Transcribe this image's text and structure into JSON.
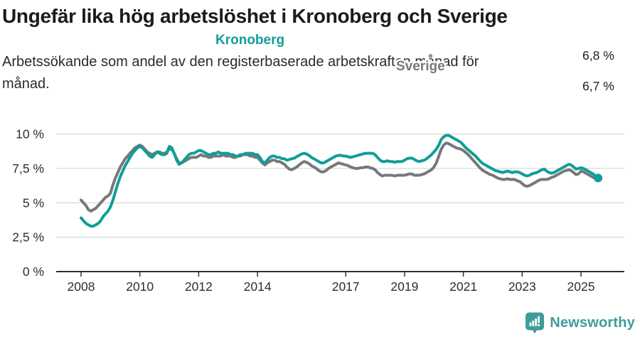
{
  "header": {
    "title": "Ungefär lika hög arbetslöshet i Kronoberg och Sverige",
    "subtitle_line1": "Arbetssökande som andel av den registerbaserade arbetskraften månad för",
    "subtitle_line2": "månad."
  },
  "chart_data": {
    "type": "line",
    "title": "Ungefär lika hög arbetslöshet i Kronoberg och Sverige",
    "subtitle": "Arbetssökande som andel av den registerbaserade arbetskraften månad för månad.",
    "unit": "%",
    "x_start": "2008-01",
    "x_end": "2025-08",
    "ylim": [
      0,
      10
    ],
    "grid": "horizontal",
    "legend_position": "inline-labels",
    "y_ticks": {
      "values": [
        0,
        2.5,
        5,
        7.5,
        10
      ],
      "labels": [
        "0 %",
        "2,5 %",
        "5 %",
        "7,5 %",
        "10 %"
      ]
    },
    "x_ticks": {
      "years": [
        2008,
        2010,
        2012,
        2014,
        2017,
        2019,
        2021,
        2023,
        2025
      ],
      "labels": [
        "2008",
        "2010",
        "2012",
        "2014",
        "2017",
        "2019",
        "2021",
        "2023",
        "2025"
      ]
    },
    "series": [
      {
        "name": "Kronoberg",
        "color": "#109e97",
        "end_label": "6,8 %",
        "last_value": 6.8,
        "end_dot": true,
        "values": [
          3.9,
          3.7,
          3.5,
          3.4,
          3.3,
          3.3,
          3.4,
          3.5,
          3.7,
          4.0,
          4.2,
          4.4,
          4.7,
          5.2,
          5.8,
          6.4,
          6.9,
          7.3,
          7.7,
          8.0,
          8.3,
          8.6,
          8.8,
          9.0,
          9.1,
          9.0,
          8.8,
          8.6,
          8.4,
          8.3,
          8.5,
          8.7,
          8.6,
          8.5,
          8.5,
          8.6,
          9.1,
          9.0,
          8.6,
          8.1,
          7.8,
          7.9,
          8.1,
          8.3,
          8.5,
          8.6,
          8.6,
          8.7,
          8.8,
          8.8,
          8.7,
          8.6,
          8.5,
          8.5,
          8.6,
          8.6,
          8.7,
          8.6,
          8.6,
          8.6,
          8.6,
          8.5,
          8.5,
          8.4,
          8.4,
          8.5,
          8.5,
          8.6,
          8.6,
          8.6,
          8.6,
          8.5,
          8.5,
          8.3,
          8.0,
          7.9,
          8.1,
          8.3,
          8.4,
          8.4,
          8.3,
          8.3,
          8.2,
          8.2,
          8.1,
          8.15,
          8.2,
          8.25,
          8.35,
          8.45,
          8.55,
          8.6,
          8.55,
          8.45,
          8.3,
          8.2,
          8.1,
          8.0,
          7.9,
          7.9,
          8.0,
          8.1,
          8.2,
          8.3,
          8.4,
          8.45,
          8.45,
          8.4,
          8.4,
          8.35,
          8.3,
          8.35,
          8.4,
          8.45,
          8.5,
          8.55,
          8.6,
          8.6,
          8.6,
          8.6,
          8.5,
          8.3,
          8.1,
          8.0,
          8.0,
          8.05,
          8.0,
          8.0,
          7.95,
          8.0,
          8.0,
          8.0,
          8.1,
          8.2,
          8.25,
          8.25,
          8.15,
          8.05,
          8.0,
          8.05,
          8.1,
          8.2,
          8.35,
          8.5,
          8.7,
          8.9,
          9.2,
          9.6,
          9.8,
          9.9,
          9.9,
          9.8,
          9.7,
          9.6,
          9.5,
          9.4,
          9.2,
          9.0,
          8.85,
          8.7,
          8.55,
          8.4,
          8.2,
          8.0,
          7.85,
          7.75,
          7.65,
          7.55,
          7.45,
          7.35,
          7.3,
          7.25,
          7.2,
          7.25,
          7.3,
          7.25,
          7.2,
          7.25,
          7.25,
          7.2,
          7.1,
          7.0,
          6.95,
          7.0,
          7.1,
          7.15,
          7.2,
          7.3,
          7.4,
          7.45,
          7.3,
          7.2,
          7.15,
          7.2,
          7.3,
          7.4,
          7.5,
          7.6,
          7.7,
          7.8,
          7.75,
          7.6,
          7.45,
          7.5,
          7.55,
          7.5,
          7.4,
          7.3,
          7.2,
          7.1,
          6.95,
          6.8
        ]
      },
      {
        "name": "Sverige",
        "color": "#77787c",
        "end_label": "6,7 %",
        "last_value": 6.7,
        "end_dot": false,
        "values": [
          5.2,
          5.0,
          4.8,
          4.5,
          4.4,
          4.5,
          4.6,
          4.8,
          5.0,
          5.2,
          5.4,
          5.5,
          5.7,
          6.3,
          6.8,
          7.2,
          7.6,
          7.9,
          8.2,
          8.4,
          8.6,
          8.8,
          9.0,
          9.1,
          9.2,
          9.1,
          8.9,
          8.7,
          8.6,
          8.5,
          8.6,
          8.7,
          8.7,
          8.6,
          8.6,
          8.7,
          8.9,
          8.9,
          8.6,
          8.2,
          7.9,
          7.9,
          8.0,
          8.1,
          8.2,
          8.3,
          8.3,
          8.3,
          8.4,
          8.5,
          8.4,
          8.4,
          8.3,
          8.3,
          8.4,
          8.4,
          8.4,
          8.4,
          8.5,
          8.4,
          8.4,
          8.4,
          8.3,
          8.3,
          8.4,
          8.4,
          8.5,
          8.5,
          8.5,
          8.4,
          8.4,
          8.3,
          8.3,
          8.1,
          7.9,
          7.75,
          7.9,
          8.0,
          8.1,
          8.1,
          8.0,
          8.0,
          7.9,
          7.8,
          7.6,
          7.45,
          7.4,
          7.5,
          7.6,
          7.75,
          7.9,
          8.0,
          7.95,
          7.85,
          7.7,
          7.6,
          7.5,
          7.35,
          7.25,
          7.25,
          7.35,
          7.5,
          7.6,
          7.7,
          7.8,
          7.9,
          7.85,
          7.8,
          7.75,
          7.7,
          7.6,
          7.55,
          7.5,
          7.5,
          7.55,
          7.55,
          7.6,
          7.6,
          7.55,
          7.5,
          7.4,
          7.2,
          7.05,
          6.95,
          7.0,
          7.0,
          7.0,
          7.0,
          6.95,
          7.0,
          7.0,
          7.0,
          7.0,
          7.05,
          7.1,
          7.1,
          7.0,
          7.0,
          7.0,
          7.05,
          7.1,
          7.2,
          7.3,
          7.4,
          7.6,
          7.9,
          8.4,
          8.9,
          9.2,
          9.35,
          9.3,
          9.2,
          9.1,
          9.0,
          8.95,
          8.9,
          8.8,
          8.65,
          8.5,
          8.3,
          8.1,
          7.9,
          7.7,
          7.5,
          7.35,
          7.25,
          7.15,
          7.05,
          7.0,
          6.9,
          6.8,
          6.75,
          6.7,
          6.7,
          6.75,
          6.7,
          6.7,
          6.7,
          6.6,
          6.55,
          6.4,
          6.25,
          6.2,
          6.25,
          6.35,
          6.45,
          6.55,
          6.65,
          6.7,
          6.7,
          6.7,
          6.75,
          6.85,
          6.9,
          7.0,
          7.1,
          7.2,
          7.3,
          7.35,
          7.4,
          7.35,
          7.2,
          7.05,
          7.1,
          7.3,
          7.25,
          7.15,
          7.05,
          6.95,
          6.85,
          6.75,
          6.7
        ]
      }
    ]
  },
  "footer": {
    "brand": "Newsworthy",
    "brand_color": "#3e9d9a",
    "logo_icon": "bar-chart-speech-bubble"
  },
  "colors": {
    "kronoberg": "#109e97",
    "sverige": "#77787c",
    "grid": "#dcdcdc",
    "axis": "#303030"
  }
}
